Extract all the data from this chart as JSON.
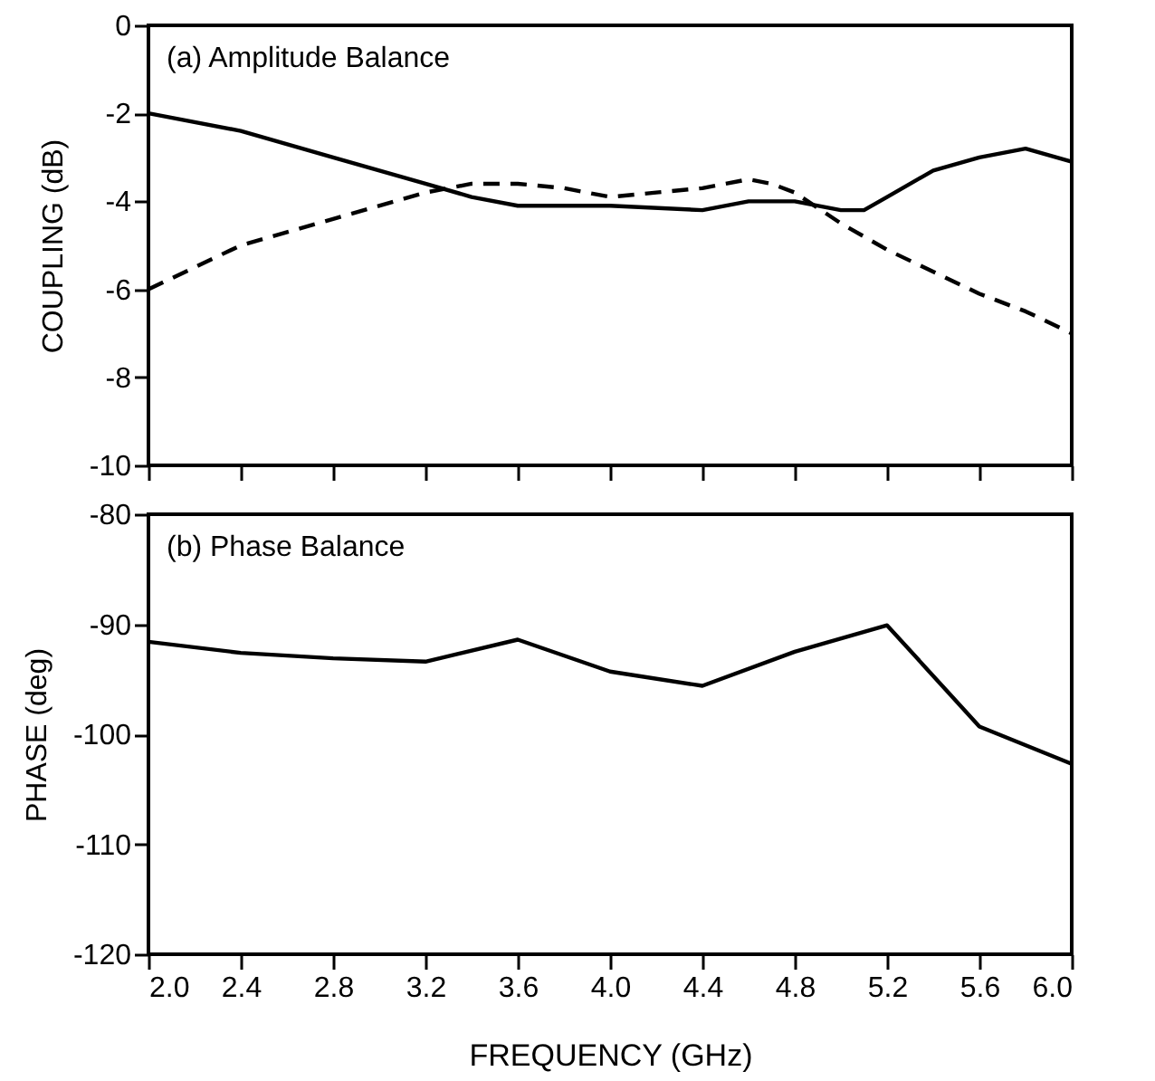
{
  "chart_data": [
    {
      "type": "line",
      "title": "(a) Amplitude Balance",
      "ylabel": "COUPLING (dB)",
      "xlim": [
        2.0,
        6.0
      ],
      "xticks": [
        2.0,
        2.4,
        2.8,
        3.2,
        3.6,
        4.0,
        4.4,
        4.8,
        5.2,
        5.6,
        6.0
      ],
      "ylim": [
        -10,
        0
      ],
      "yticks": [
        -10,
        -8,
        -6,
        -4,
        -2,
        0
      ],
      "tick_labels": "y",
      "grid": false,
      "series": [
        {
          "color": "#000000",
          "line_style": "solid",
          "x": [
            2.0,
            2.4,
            2.8,
            3.2,
            3.4,
            3.6,
            4.0,
            4.4,
            4.6,
            4.8,
            5.0,
            5.1,
            5.2,
            5.4,
            5.6,
            5.8,
            6.0
          ],
          "values": [
            -2.0,
            -2.4,
            -3.0,
            -3.6,
            -3.9,
            -4.1,
            -4.1,
            -4.2,
            -4.0,
            -4.0,
            -4.2,
            -4.2,
            -3.9,
            -3.3,
            -3.0,
            -2.8,
            -3.1
          ]
        },
        {
          "color": "#000000",
          "line_style": "dashed",
          "x": [
            2.0,
            2.4,
            2.8,
            3.2,
            3.4,
            3.6,
            3.8,
            4.0,
            4.2,
            4.4,
            4.6,
            4.7,
            4.8,
            5.0,
            5.2,
            5.6,
            5.8,
            6.0
          ],
          "values": [
            -6.0,
            -5.0,
            -4.4,
            -3.8,
            -3.6,
            -3.6,
            -3.7,
            -3.9,
            -3.8,
            -3.7,
            -3.5,
            -3.6,
            -3.8,
            -4.5,
            -5.1,
            -6.1,
            -6.5,
            -7.0
          ]
        }
      ]
    },
    {
      "type": "line",
      "title": "(b) Phase Balance",
      "xlabel": "FREQUENCY (GHz)",
      "ylabel": "PHASE (deg)",
      "xlim": [
        2.0,
        6.0
      ],
      "xticks": [
        {
          "value": 2.0,
          "label": "2.0"
        },
        2.4,
        2.8,
        3.2,
        3.6,
        {
          "value": 4.0,
          "label": "4.0"
        },
        4.4,
        4.8,
        5.2,
        5.6,
        {
          "value": 6.0,
          "label": "6.0"
        }
      ],
      "ylim": [
        -120,
        -80
      ],
      "yticks": [
        -120,
        -110,
        -100,
        -90,
        -80
      ],
      "grid": false,
      "series": [
        {
          "color": "#000000",
          "line_style": "solid",
          "x": [
            2.0,
            2.4,
            2.8,
            3.2,
            3.6,
            4.0,
            4.4,
            4.8,
            5.2,
            5.6,
            6.0
          ],
          "values": [
            -91.6,
            -92.6,
            -93.1,
            -93.4,
            -91.4,
            -94.3,
            -95.6,
            -92.5,
            -90.1,
            -99.3,
            -102.7
          ]
        }
      ]
    }
  ]
}
